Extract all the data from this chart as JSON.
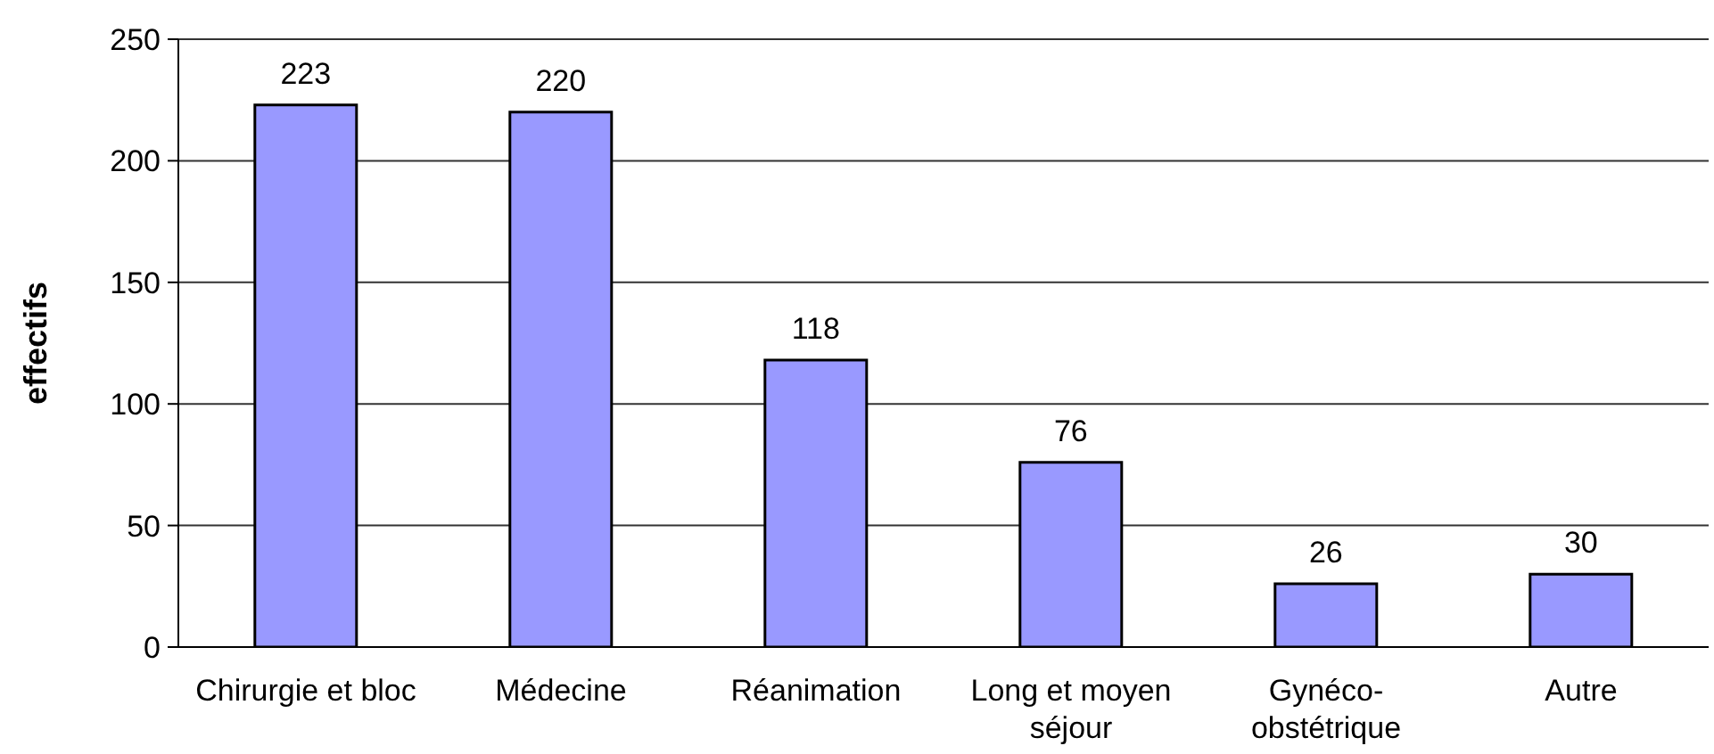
{
  "chart_data": {
    "type": "bar",
    "ylabel": "effectifs",
    "categories": [
      "Chirurgie et bloc",
      "Médecine",
      "Réanimation",
      "Long et moyen séjour",
      "Gynéco-obstétrique",
      "Autre"
    ],
    "values": [
      223,
      220,
      118,
      76,
      26,
      30
    ],
    "color": "#9999ff",
    "ylim": [
      0,
      250
    ],
    "yticks": [
      0,
      50,
      100,
      150,
      200,
      250
    ],
    "grid": "y",
    "data_labels": true
  }
}
